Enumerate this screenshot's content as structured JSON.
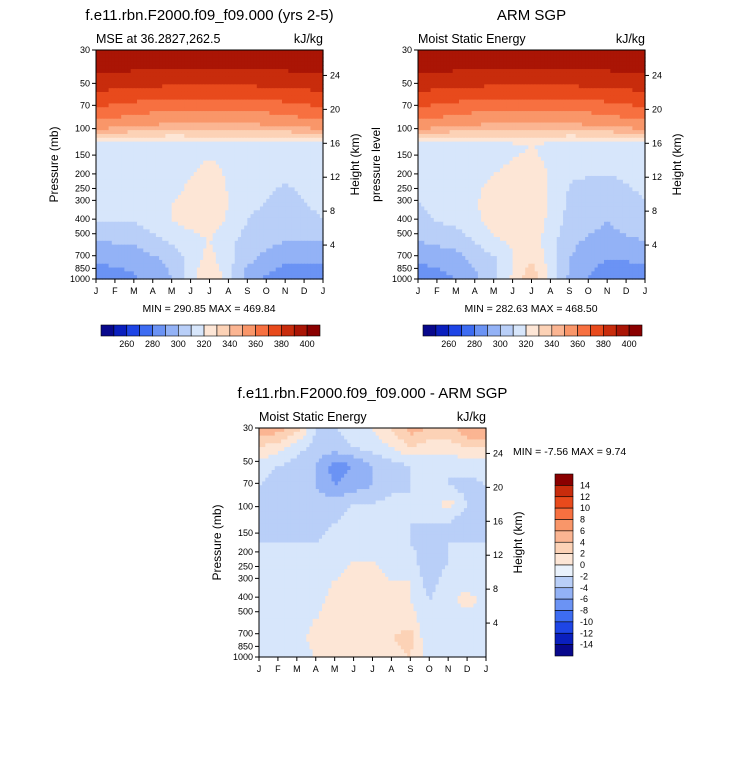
{
  "palette": [
    "#08088c",
    "#0a1fbe",
    "#1e45e6",
    "#3d6cf2",
    "#6b93f4",
    "#93b2f6",
    "#b9cff8",
    "#d7e6fb",
    "#fde6d6",
    "#fcd2b6",
    "#fbb592",
    "#f99669",
    "#f77040",
    "#e84a1c",
    "#c82c0c",
    "#aa1505",
    "#8a0000"
  ],
  "chart_data": [
    {
      "type": "contour",
      "title": "f.e11.rbn.F2000.f09_f09.000 (yrs 2-5)",
      "left_subtitle": "MSE at 36.2827,262.5",
      "right_subtitle": "kJ/kg",
      "ylabel": "Pressure (mb)",
      "y2label": "Height (km)",
      "months": [
        "J",
        "F",
        "M",
        "A",
        "M",
        "J",
        "J",
        "A",
        "S",
        "O",
        "N",
        "D",
        "J"
      ],
      "pressure_levels": [
        30,
        50,
        70,
        100,
        150,
        200,
        250,
        300,
        400,
        500,
        700,
        850,
        1000
      ],
      "height_ticks": [
        24,
        20,
        16,
        12,
        8,
        4
      ],
      "band_values": [
        402,
        395,
        388,
        380,
        373,
        365,
        357,
        347,
        338,
        331,
        326,
        322
      ],
      "lower_values": [
        {
          "month": "J",
          "v": [
            322,
            322,
            322,
            322,
            320,
            310,
            302,
            292
          ]
        },
        {
          "month": "M",
          "v": [
            322,
            322,
            322,
            322,
            320,
            312,
            304,
            298
          ]
        },
        {
          "month": "M",
          "v": [
            322,
            322,
            326,
            330,
            330,
            322,
            312,
            310
          ]
        },
        {
          "month": "J",
          "v": [
            326,
            332,
            336,
            338,
            336,
            330,
            334,
            342
          ]
        },
        {
          "month": "S",
          "v": [
            324,
            324,
            322,
            322,
            320,
            316,
            312,
            305
          ]
        },
        {
          "month": "N",
          "v": [
            322,
            322,
            320,
            318,
            314,
            310,
            302,
            292
          ]
        }
      ],
      "min_max_label": "MIN = 290.85   MAX = 469.84"
    },
    {
      "type": "contour",
      "title": "ARM SGP",
      "left_subtitle": "Moist Static Energy",
      "right_subtitle": "kJ/kg",
      "ylabel": "pressure level",
      "y2label": "Height (km)",
      "months": [
        "J",
        "F",
        "M",
        "A",
        "M",
        "J",
        "J",
        "A",
        "S",
        "O",
        "N",
        "D",
        "J"
      ],
      "pressure_levels": [
        30,
        50,
        70,
        100,
        150,
        200,
        250,
        300,
        400,
        500,
        700,
        850,
        1000
      ],
      "height_ticks": [
        24,
        20,
        16,
        12,
        8,
        4
      ],
      "band_values": [
        402,
        395,
        388,
        380,
        373,
        365,
        357,
        347,
        338,
        331,
        326,
        322
      ],
      "lower_values": [
        {
          "month": "J",
          "v": [
            322,
            322,
            322,
            320,
            318,
            310,
            302,
            290
          ]
        },
        {
          "month": "M",
          "v": [
            322,
            322,
            324,
            324,
            322,
            314,
            306,
            300
          ]
        },
        {
          "month": "M",
          "v": [
            324,
            328,
            332,
            334,
            334,
            328,
            318,
            316
          ]
        },
        {
          "month": "J",
          "v": [
            330,
            334,
            338,
            340,
            338,
            336,
            340,
            348
          ]
        },
        {
          "month": "S",
          "v": [
            322,
            322,
            320,
            318,
            316,
            312,
            310,
            308
          ]
        },
        {
          "month": "N",
          "v": [
            322,
            322,
            318,
            314,
            310,
            306,
            300,
            290
          ]
        }
      ],
      "min_max_label": "MIN = 282.63   MAX = 468.50"
    },
    {
      "type": "contour",
      "title": "f.e11.rbn.F2000.f09_f09.000 - ARM SGP",
      "left_subtitle": "Moist Static Energy",
      "right_subtitle": "kJ/kg",
      "ylabel": "Pressure (mb)",
      "y2label": "Height (km)",
      "months": [
        "J",
        "F",
        "M",
        "A",
        "M",
        "J",
        "J",
        "A",
        "S",
        "O",
        "N",
        "D",
        "J"
      ],
      "pressure_levels": [
        30,
        50,
        70,
        100,
        150,
        200,
        250,
        300,
        400,
        500,
        700,
        850,
        1000
      ],
      "height_ticks": [
        24,
        20,
        16,
        12,
        8,
        4
      ],
      "min_max_label": "MIN =  -7.56   MAX =   9.74",
      "diff_values": [
        [
          6,
          5,
          3,
          -2,
          -2,
          -1,
          0,
          2,
          5,
          4,
          3,
          6,
          6
        ],
        [
          2,
          1,
          -1,
          -3,
          -3,
          -2,
          -1,
          0,
          2,
          1,
          1,
          2,
          2
        ],
        [
          -1,
          -2,
          -3,
          -4,
          -7,
          -6,
          -4,
          -3,
          -2,
          -2,
          -2,
          -1,
          -1
        ],
        [
          -2,
          -3,
          -3,
          -4,
          -6,
          -5,
          -4,
          -3,
          -2,
          -2,
          -2,
          -3,
          -2
        ],
        [
          -2,
          -3,
          -2,
          -3,
          -3,
          -2,
          -2,
          -1,
          -2,
          -2,
          1,
          -2,
          -2
        ],
        [
          -2,
          -3,
          -4,
          -3,
          -2,
          -1,
          -1,
          -1,
          -2,
          -2,
          -2,
          -4,
          -2
        ],
        [
          -2,
          -2,
          -2,
          -2,
          -1,
          -1,
          -1,
          -1,
          -2,
          -3,
          -2,
          -2,
          -2
        ],
        [
          -2,
          -2,
          -2,
          -1,
          -1,
          0,
          0,
          -1,
          -1,
          -4,
          -2,
          -2,
          -2
        ],
        [
          -2,
          -1,
          -1,
          -1,
          0,
          1,
          1,
          0,
          0,
          -3,
          -1,
          -1,
          -2
        ],
        [
          -1,
          -1,
          -1,
          -1,
          1,
          1,
          1,
          1,
          0,
          -2,
          -1,
          1,
          -1
        ],
        [
          -1,
          -1,
          -1,
          0,
          1,
          2,
          1,
          1,
          1,
          -2,
          -1,
          -1,
          -1
        ],
        [
          0,
          -1,
          -1,
          1,
          2,
          1,
          0,
          2,
          3,
          -2,
          -1,
          -1,
          -1
        ],
        [
          0,
          -1,
          -1,
          0,
          1,
          1,
          0,
          1,
          2,
          -1,
          -1,
          -1,
          -1
        ]
      ]
    }
  ],
  "colorbar_top": {
    "labels": [
      "260",
      "280",
      "300",
      "320",
      "340",
      "360",
      "380",
      "400"
    ]
  },
  "colorbar_bottom": {
    "labels": [
      "14",
      "12",
      "10",
      "8",
      "6",
      "4",
      "2",
      "0",
      "-2",
      "-4",
      "-6",
      "-8",
      "-10",
      "-12",
      "-14"
    ]
  }
}
